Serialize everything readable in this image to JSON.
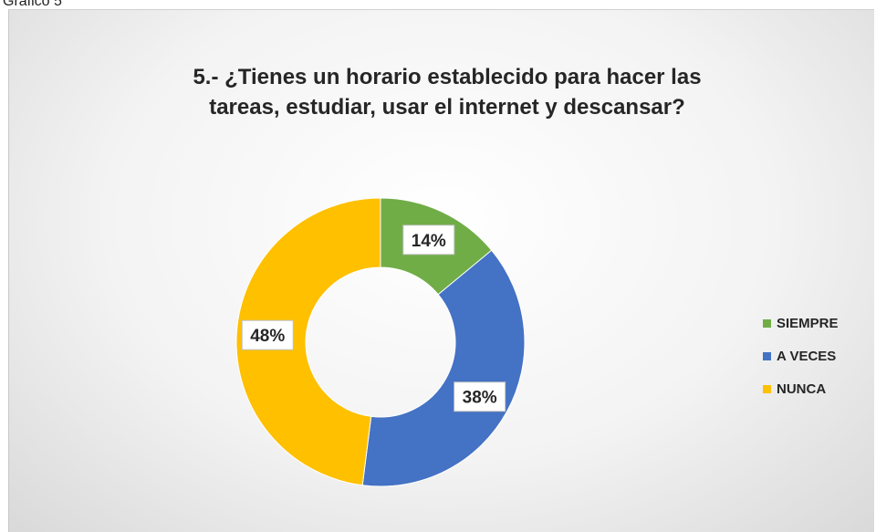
{
  "caption": "Gráfico 5",
  "chart_data": {
    "type": "pie",
    "variant": "donut",
    "title_lines": [
      "5.- ¿Tienes un horario establecido para hacer las",
      "tareas, estudiar, usar el internet y descansar?"
    ],
    "categories": [
      "SIEMPRE",
      "A VECES",
      "NUNCA"
    ],
    "values": [
      14,
      38,
      48
    ],
    "labels": [
      "14%",
      "38%",
      "48%"
    ],
    "colors": [
      "#70AD47",
      "#4472C4",
      "#FFC000"
    ],
    "legend_position": "right"
  }
}
